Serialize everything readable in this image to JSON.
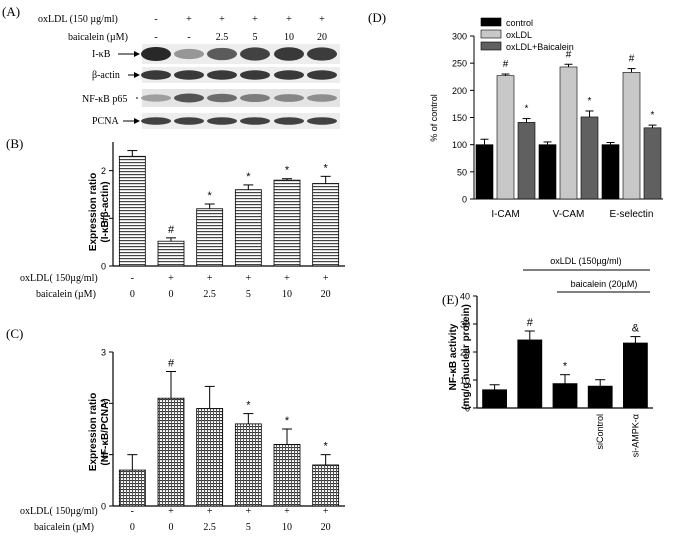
{
  "panel_labels": {
    "a": "(A)",
    "b": "(B)",
    "c": "(C)",
    "d": "(D)",
    "e": "(E)"
  },
  "blot": {
    "row_labels": [
      {
        "label": "oxLDL (150 µg/ml)",
        "values": [
          "-",
          "+",
          "+",
          "+",
          "+",
          "+"
        ]
      },
      {
        "label": "baicalein (µM)",
        "values": [
          "-",
          "-",
          "2.5",
          "5",
          "10",
          "20"
        ]
      }
    ],
    "bands": [
      {
        "name": "I-κB",
        "intensity": [
          1.0,
          0.35,
          0.7,
          0.85,
          0.9,
          0.88
        ]
      },
      {
        "name": "β-actin",
        "intensity": [
          0.9,
          0.9,
          0.9,
          0.9,
          0.9,
          0.9
        ]
      },
      {
        "name": "NF-κB p65",
        "intensity": [
          0.3,
          0.75,
          0.6,
          0.5,
          0.45,
          0.4
        ]
      },
      {
        "name": "PCNA",
        "intensity": [
          0.85,
          0.85,
          0.85,
          0.85,
          0.85,
          0.85
        ]
      }
    ]
  },
  "chart_data": [
    {
      "id": "B",
      "type": "bar",
      "ylabel": "Expression ratio",
      "ylabel2": "(I-κB/β-actin)",
      "yticks": [
        "0",
        "1",
        "2"
      ],
      "ylim": [
        0,
        2.6
      ],
      "values": [
        2.3,
        0.52,
        1.2,
        1.6,
        1.8,
        1.73
      ],
      "errors": [
        0.12,
        0.07,
        0.1,
        0.1,
        0.03,
        0.15
      ],
      "marks": [
        "",
        "#",
        "*",
        "*",
        "*",
        "*"
      ],
      "row1_label": "oxLDL( 150µg/ml)",
      "row1": [
        "-",
        "+",
        "+",
        "+",
        "+",
        "+"
      ],
      "row2_label": "baicalein (µM)",
      "row2": [
        "0",
        "0",
        "2.5",
        "5",
        "10",
        "20"
      ],
      "fill": "stripes"
    },
    {
      "id": "C",
      "type": "bar",
      "ylabel": "Expression ratio",
      "ylabel2": "(NF-κB/PCNA)",
      "yticks": [
        "0",
        "1",
        "2",
        "3"
      ],
      "ylim": [
        0,
        3
      ],
      "values": [
        0.7,
        2.1,
        1.9,
        1.6,
        1.2,
        0.8
      ],
      "errors": [
        0.3,
        0.52,
        0.43,
        0.2,
        0.3,
        0.2
      ],
      "marks": [
        "",
        "#",
        "",
        "*",
        "*",
        "*"
      ],
      "row1_label": "oxLDL( 150µg/ml)",
      "row1": [
        "-",
        "+",
        "+",
        "+",
        "+",
        "+"
      ],
      "row2_label": "baicalein (µM)",
      "row2": [
        "0",
        "0",
        "2.5",
        "5",
        "10",
        "20"
      ],
      "fill": "grid"
    },
    {
      "id": "D",
      "type": "bar",
      "ylabel": "% of control",
      "yticks": [
        "0",
        "50",
        "100",
        "150",
        "200",
        "250",
        "300"
      ],
      "ylim": [
        0,
        300
      ],
      "categories": [
        "I-CAM",
        "V-CAM",
        "E-selectin"
      ],
      "series": [
        {
          "name": "control",
          "color": "#000000",
          "values": [
            100,
            100,
            100
          ],
          "errors": [
            10,
            5,
            4
          ],
          "marks": [
            "",
            "",
            ""
          ]
        },
        {
          "name": "oxLDL",
          "color": "#c8c8c8",
          "values": [
            227,
            243,
            233
          ],
          "errors": [
            3,
            5,
            7
          ],
          "marks": [
            "#",
            "#",
            "#"
          ]
        },
        {
          "name": "oxLDL+Baicalein",
          "color": "#606060",
          "values": [
            141,
            151,
            131
          ],
          "errors": [
            7,
            11,
            5
          ],
          "marks": [
            "*",
            "*",
            "*"
          ]
        }
      ]
    },
    {
      "id": "E",
      "type": "bar",
      "ylabel": "NF-κB activity",
      "ylabel2": "(mg/g nuclear protein)",
      "yticks": [
        "0",
        "10",
        "20",
        "30",
        "40"
      ],
      "ylim": [
        0,
        40
      ],
      "values": [
        6.5,
        24.3,
        8.7,
        7.8,
        23.2
      ],
      "errors": [
        1.8,
        3.2,
        3.2,
        2.3,
        2.3
      ],
      "marks": [
        "",
        "#",
        "*",
        "",
        "&"
      ],
      "xlabels": [
        "",
        "",
        "",
        "siControl",
        "si-AMPK-α"
      ],
      "bracket1": "oxLDL (150µg/ml)",
      "bracket2": "baicalein (20µM)",
      "color": "#000000"
    }
  ]
}
